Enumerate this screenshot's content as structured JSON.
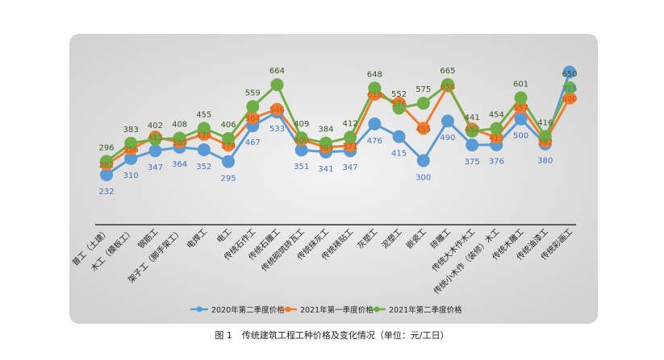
{
  "chart_data": {
    "type": "line",
    "categories": [
      "普工（土建）",
      "木工（模板工）",
      "钢筋工",
      "架子工（脚手架工）",
      "电焊工",
      "电工",
      "传统石作工",
      "传统石雕工",
      "传统砌筑砖瓦工",
      "传统抹灰工",
      "传统裱贴工",
      "灰塑工",
      "泥塑工",
      "嵌瓷工",
      "砖雕工",
      "传统大木作木工",
      "传统小木作（装修）木工",
      "传统木雕工",
      "传统油漆工",
      "传统彩画工"
    ],
    "series": [
      {
        "name": "2020年第二季度价格",
        "color": "#5b9bd5",
        "values": [
          232,
          310,
          347,
          364,
          352,
          295,
          467,
          533,
          351,
          341,
          347,
          476,
          415,
          300,
          490,
          375,
          376,
          500,
          380,
          725
        ]
      },
      {
        "name": "2021年第一季度价格",
        "color": "#ed7d31",
        "values": [
          282,
          356,
          413,
          389,
          426,
          374,
          504,
          546,
          400,
          364,
          371,
          618,
          576,
          455,
          658,
          452,
          411,
          557,
          392,
          600
        ]
      },
      {
        "name": "2021年第二季度价格",
        "color": "#70ad47",
        "values": [
          296,
          383,
          402,
          408,
          455,
          406,
          559,
          664,
          409,
          384,
          412,
          648,
          552,
          575,
          665,
          441,
          454,
          601,
          416,
          650
        ]
      }
    ],
    "legend_position": "bottom",
    "grid": false
  },
  "caption": {
    "figure_no": "图 1",
    "text": "传统建筑工程工种价格及变化情况（单位：元/工日）"
  },
  "colors": {
    "plot_background": "#dcdcdc",
    "label_text": "#555555"
  }
}
